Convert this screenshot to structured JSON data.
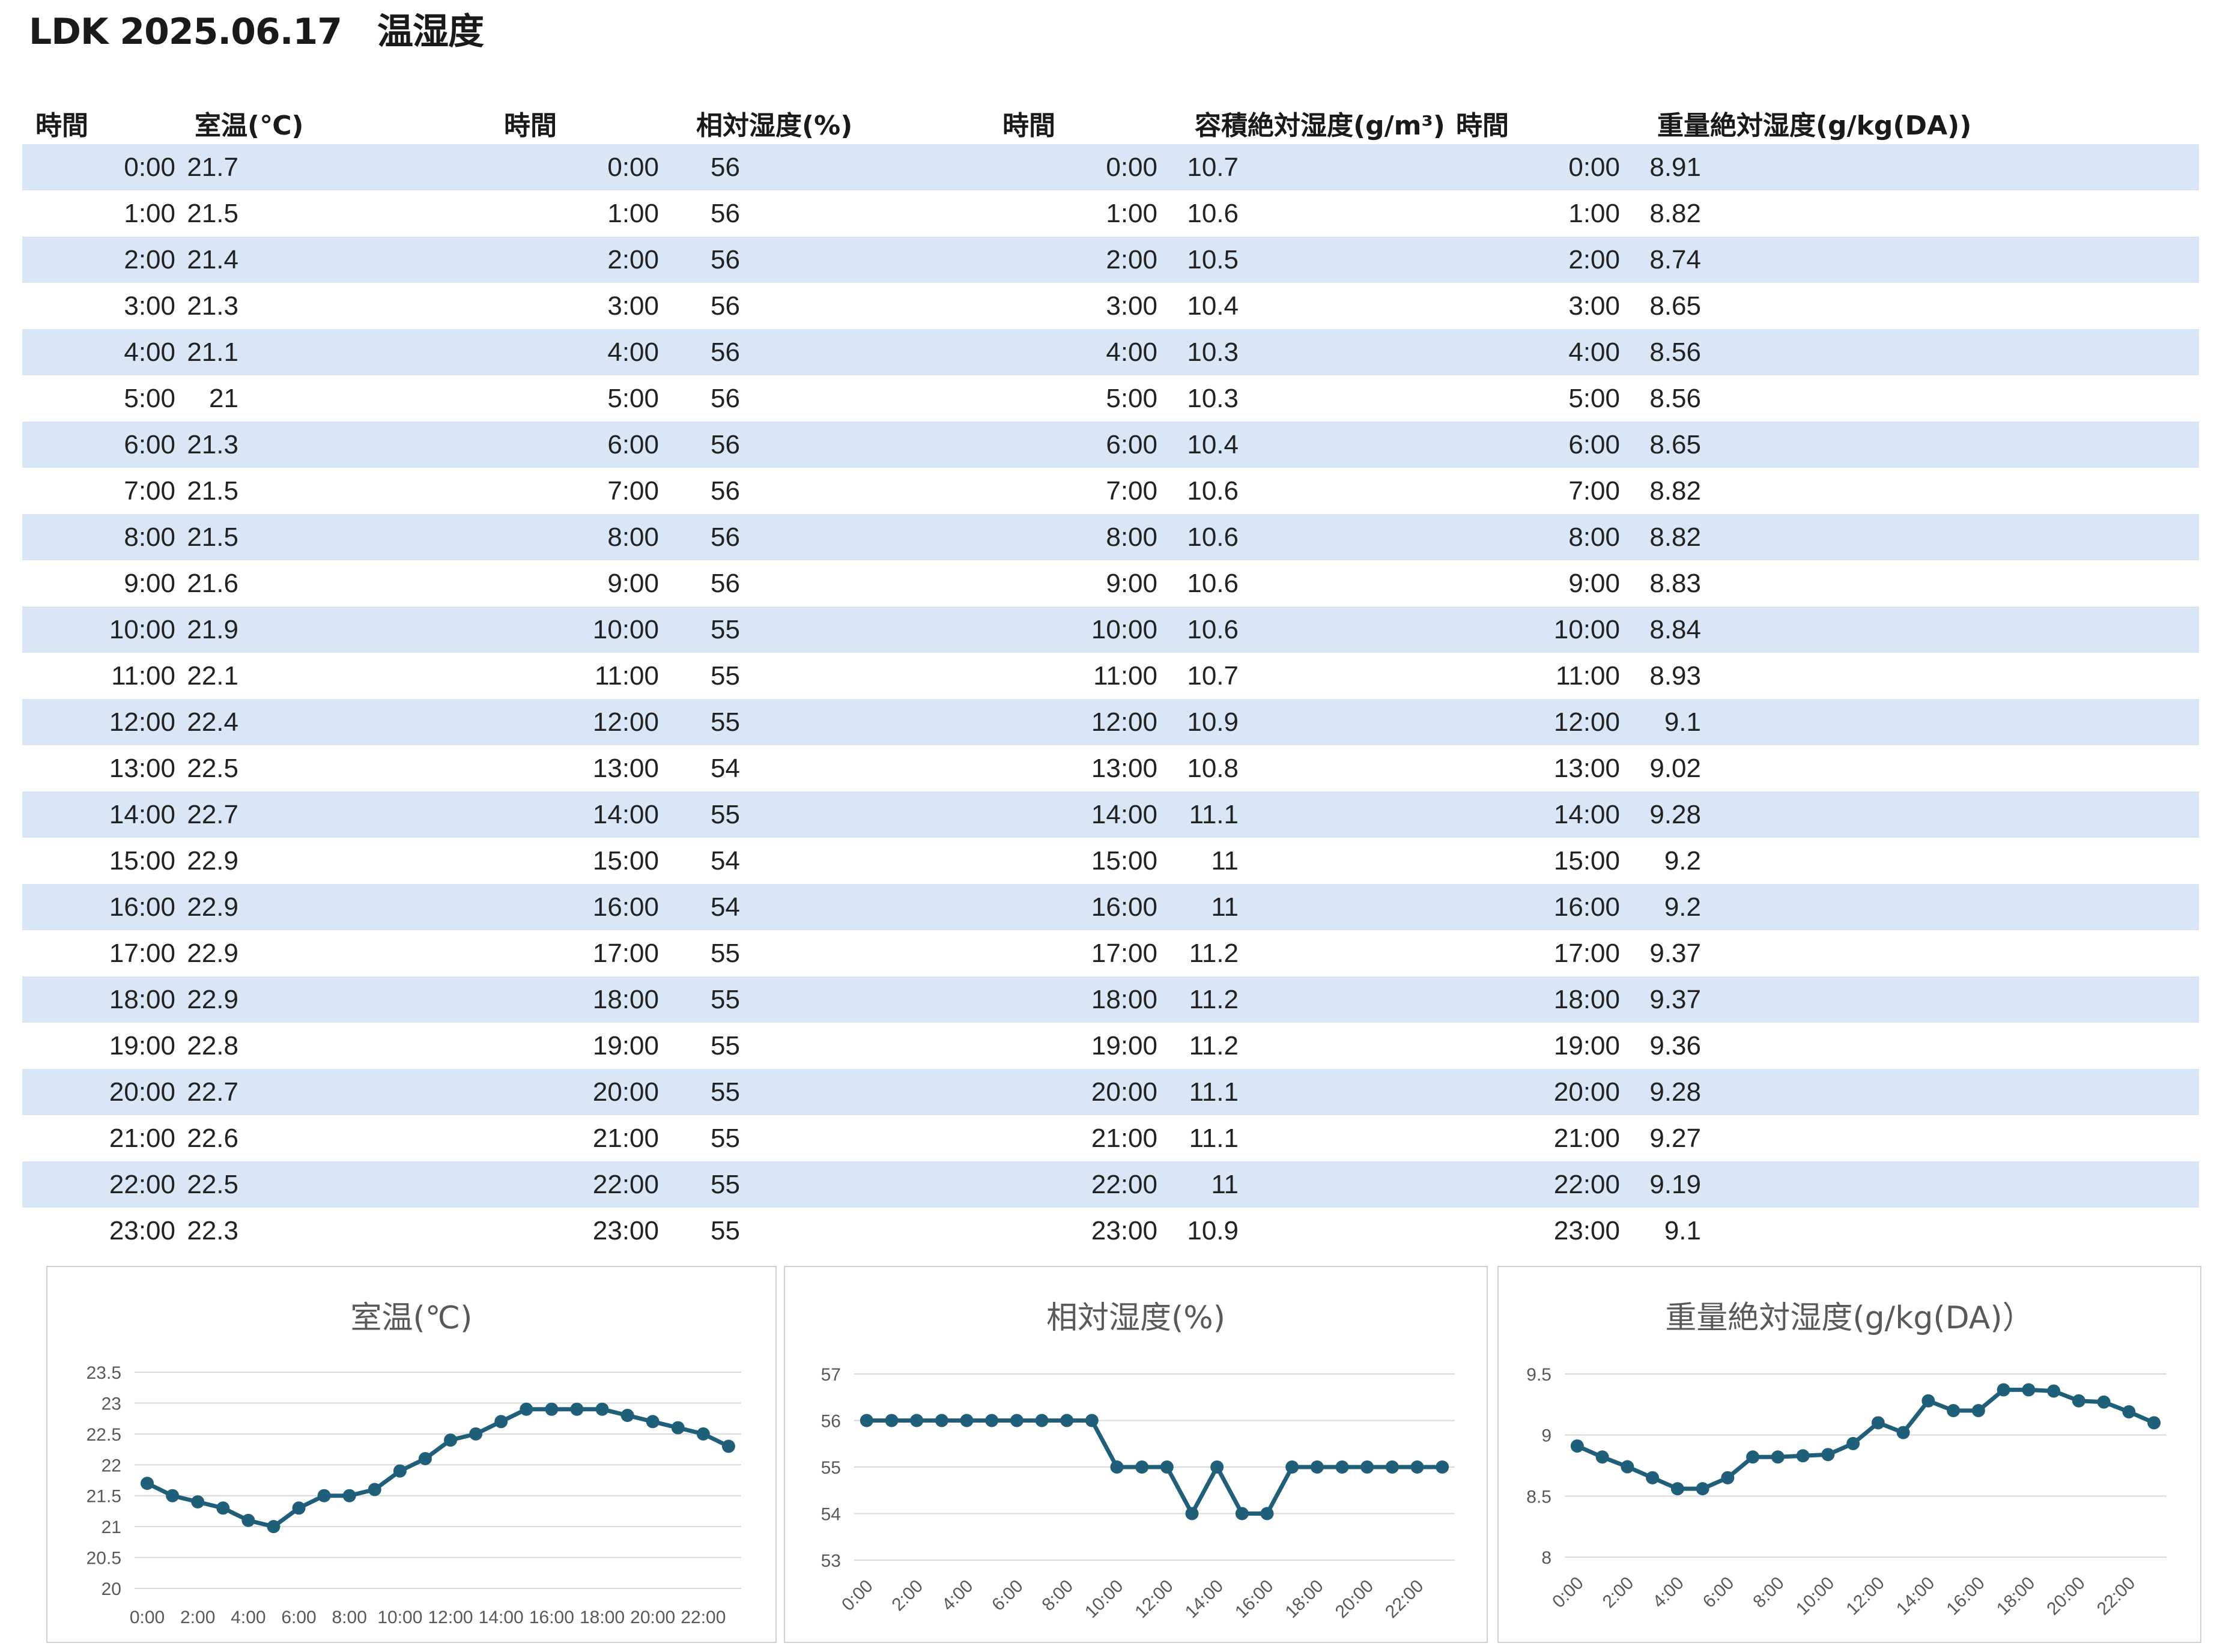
{
  "title": "LDK 2025.06.17　温湿度",
  "table": {
    "headers": [
      "時間",
      "室温(℃)",
      "時間",
      "相対湿度(%)",
      "時間",
      "容積絶対湿度(g/m³)",
      "時間",
      "重量絶対湿度(g/kg(DA))"
    ],
    "rows": [
      [
        "0:00",
        "21.7",
        "0:00",
        "56",
        "0:00",
        "10.7",
        "0:00",
        "8.91"
      ],
      [
        "1:00",
        "21.5",
        "1:00",
        "56",
        "1:00",
        "10.6",
        "1:00",
        "8.82"
      ],
      [
        "2:00",
        "21.4",
        "2:00",
        "56",
        "2:00",
        "10.5",
        "2:00",
        "8.74"
      ],
      [
        "3:00",
        "21.3",
        "3:00",
        "56",
        "3:00",
        "10.4",
        "3:00",
        "8.65"
      ],
      [
        "4:00",
        "21.1",
        "4:00",
        "56",
        "4:00",
        "10.3",
        "4:00",
        "8.56"
      ],
      [
        "5:00",
        "21",
        "5:00",
        "56",
        "5:00",
        "10.3",
        "5:00",
        "8.56"
      ],
      [
        "6:00",
        "21.3",
        "6:00",
        "56",
        "6:00",
        "10.4",
        "6:00",
        "8.65"
      ],
      [
        "7:00",
        "21.5",
        "7:00",
        "56",
        "7:00",
        "10.6",
        "7:00",
        "8.82"
      ],
      [
        "8:00",
        "21.5",
        "8:00",
        "56",
        "8:00",
        "10.6",
        "8:00",
        "8.82"
      ],
      [
        "9:00",
        "21.6",
        "9:00",
        "56",
        "9:00",
        "10.6",
        "9:00",
        "8.83"
      ],
      [
        "10:00",
        "21.9",
        "10:00",
        "55",
        "10:00",
        "10.6",
        "10:00",
        "8.84"
      ],
      [
        "11:00",
        "22.1",
        "11:00",
        "55",
        "11:00",
        "10.7",
        "11:00",
        "8.93"
      ],
      [
        "12:00",
        "22.4",
        "12:00",
        "55",
        "12:00",
        "10.9",
        "12:00",
        "9.1"
      ],
      [
        "13:00",
        "22.5",
        "13:00",
        "54",
        "13:00",
        "10.8",
        "13:00",
        "9.02"
      ],
      [
        "14:00",
        "22.7",
        "14:00",
        "55",
        "14:00",
        "11.1",
        "14:00",
        "9.28"
      ],
      [
        "15:00",
        "22.9",
        "15:00",
        "54",
        "15:00",
        "11",
        "15:00",
        "9.2"
      ],
      [
        "16:00",
        "22.9",
        "16:00",
        "54",
        "16:00",
        "11",
        "16:00",
        "9.2"
      ],
      [
        "17:00",
        "22.9",
        "17:00",
        "55",
        "17:00",
        "11.2",
        "17:00",
        "9.37"
      ],
      [
        "18:00",
        "22.9",
        "18:00",
        "55",
        "18:00",
        "11.2",
        "18:00",
        "9.37"
      ],
      [
        "19:00",
        "22.8",
        "19:00",
        "55",
        "19:00",
        "11.2",
        "19:00",
        "9.36"
      ],
      [
        "20:00",
        "22.7",
        "20:00",
        "55",
        "20:00",
        "11.1",
        "20:00",
        "9.28"
      ],
      [
        "21:00",
        "22.6",
        "21:00",
        "55",
        "21:00",
        "11.1",
        "21:00",
        "9.27"
      ],
      [
        "22:00",
        "22.5",
        "22:00",
        "55",
        "22:00",
        "11",
        "22:00",
        "9.19"
      ],
      [
        "23:00",
        "22.3",
        "23:00",
        "55",
        "23:00",
        "10.9",
        "23:00",
        "9.1"
      ]
    ]
  },
  "colors": {
    "series_line": "#1f5f7a",
    "row_stripe": "#d9e6f5",
    "gridline": "#d9d9d9",
    "title_text": "#595959"
  },
  "chart_data": [
    {
      "type": "line",
      "title": "室温(℃)",
      "x": [
        "0:00",
        "1:00",
        "2:00",
        "3:00",
        "4:00",
        "5:00",
        "6:00",
        "7:00",
        "8:00",
        "9:00",
        "10:00",
        "11:00",
        "12:00",
        "13:00",
        "14:00",
        "15:00",
        "16:00",
        "17:00",
        "18:00",
        "19:00",
        "20:00",
        "21:00",
        "22:00",
        "23:00"
      ],
      "xtick_labels": [
        "0:00",
        "2:00",
        "4:00",
        "6:00",
        "8:00",
        "10:00",
        "12:00",
        "14:00",
        "16:00",
        "18:00",
        "20:00",
        "22:00"
      ],
      "x_tick_rotation": 0,
      "y": [
        21.7,
        21.5,
        21.4,
        21.3,
        21.1,
        21,
        21.3,
        21.5,
        21.5,
        21.6,
        21.9,
        22.1,
        22.4,
        22.5,
        22.7,
        22.9,
        22.9,
        22.9,
        22.9,
        22.8,
        22.7,
        22.6,
        22.5,
        22.3
      ],
      "ylim": [
        20,
        23.5
      ],
      "yticks": [
        "20",
        "20.5",
        "21",
        "21.5",
        "22",
        "22.5",
        "23",
        "23.5"
      ],
      "grid": true,
      "legend": "none"
    },
    {
      "type": "line",
      "title": "相対湿度(%)",
      "x": [
        "0:00",
        "1:00",
        "2:00",
        "3:00",
        "4:00",
        "5:00",
        "6:00",
        "7:00",
        "8:00",
        "9:00",
        "10:00",
        "11:00",
        "12:00",
        "13:00",
        "14:00",
        "15:00",
        "16:00",
        "17:00",
        "18:00",
        "19:00",
        "20:00",
        "21:00",
        "22:00",
        "23:00"
      ],
      "xtick_labels": [
        "0:00",
        "2:00",
        "4:00",
        "6:00",
        "8:00",
        "10:00",
        "12:00",
        "14:00",
        "16:00",
        "18:00",
        "20:00",
        "22:00"
      ],
      "x_tick_rotation": -45,
      "y": [
        56,
        56,
        56,
        56,
        56,
        56,
        56,
        56,
        56,
        56,
        55,
        55,
        55,
        54,
        55,
        54,
        54,
        55,
        55,
        55,
        55,
        55,
        55,
        55
      ],
      "ylim": [
        53,
        57
      ],
      "yticks": [
        "53",
        "54",
        "55",
        "56",
        "57"
      ],
      "grid": true,
      "legend": "none"
    },
    {
      "type": "line",
      "title": "重量絶対湿度(g/kg(DA)）",
      "x": [
        "0:00",
        "1:00",
        "2:00",
        "3:00",
        "4:00",
        "5:00",
        "6:00",
        "7:00",
        "8:00",
        "9:00",
        "10:00",
        "11:00",
        "12:00",
        "13:00",
        "14:00",
        "15:00",
        "16:00",
        "17:00",
        "18:00",
        "19:00",
        "20:00",
        "21:00",
        "22:00",
        "23:00"
      ],
      "xtick_labels": [
        "0:00",
        "2:00",
        "4:00",
        "6:00",
        "8:00",
        "10:00",
        "12:00",
        "14:00",
        "16:00",
        "18:00",
        "20:00",
        "22:00"
      ],
      "x_tick_rotation": -45,
      "y": [
        8.91,
        8.82,
        8.74,
        8.65,
        8.56,
        8.56,
        8.65,
        8.82,
        8.82,
        8.83,
        8.84,
        8.93,
        9.1,
        9.02,
        9.28,
        9.2,
        9.2,
        9.37,
        9.37,
        9.36,
        9.28,
        9.27,
        9.19,
        9.1
      ],
      "ylim": [
        8,
        9.5
      ],
      "yticks": [
        "8",
        "8.5",
        "9",
        "9.5"
      ],
      "grid": true,
      "legend": "none"
    }
  ]
}
